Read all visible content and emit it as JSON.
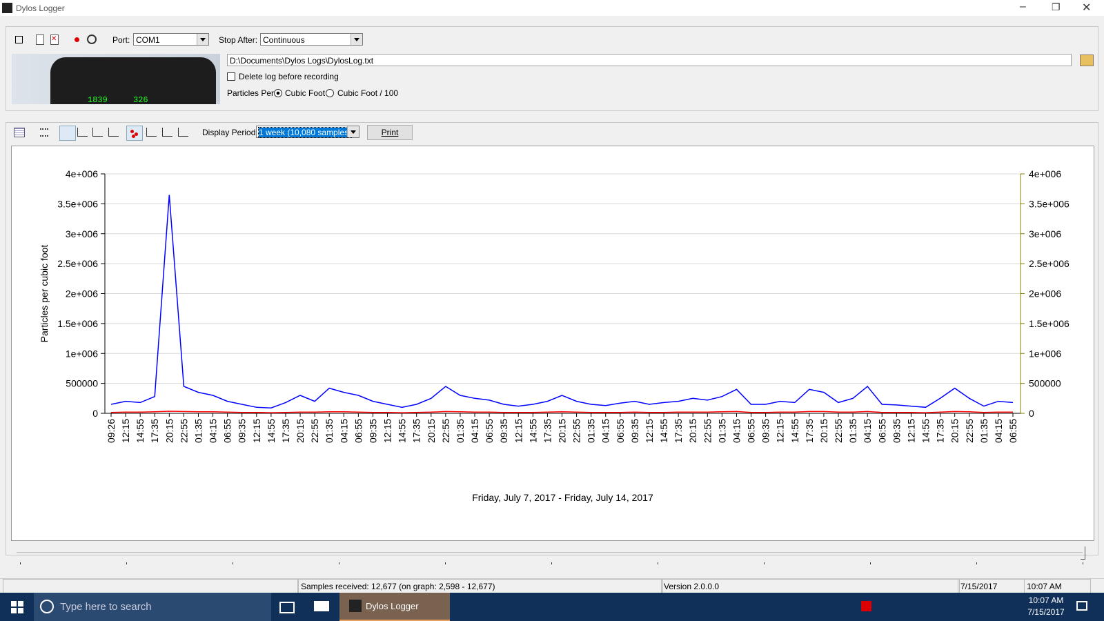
{
  "window": {
    "title": "Dylos Logger"
  },
  "toolbar": {
    "port_label": "Port:",
    "port": "COM1",
    "stop_after_label": "Stop After:",
    "stop_after": "Continuous"
  },
  "device": {
    "reading_1": "1839",
    "reading_2": "326"
  },
  "log": {
    "path": "D:\\Documents\\Dylos Logs\\DylosLog.txt",
    "delete_label": "Delete log before recording",
    "particles_per_label": "Particles Per:",
    "options": [
      "Cubic Foot",
      "Cubic Foot / 100"
    ]
  },
  "graph_toolbar": {
    "display_period_label": "Display Period:",
    "display_period": "1 week (10,080 samples)",
    "print": "Print"
  },
  "chart_data": {
    "type": "line",
    "x_label": "Friday, July 7, 2017 - Friday, July 14, 2017",
    "y_label": "Particles per cubic foot",
    "categories": [
      "09:26",
      "12:15",
      "14:55",
      "17:35",
      "20:15",
      "22:55",
      "01:35",
      "04:15",
      "06:55",
      "09:35",
      "12:15",
      "14:55",
      "17:35",
      "20:15",
      "22:55",
      "01:35",
      "04:15",
      "06:55",
      "09:35",
      "12:15",
      "14:55",
      "17:35",
      "20:15",
      "22:55",
      "01:35",
      "04:15",
      "06:55",
      "09:35",
      "12:15",
      "14:55",
      "17:35",
      "20:15",
      "22:55",
      "01:35",
      "04:15",
      "06:55",
      "09:35",
      "12:15",
      "14:55",
      "17:35",
      "20:15",
      "22:55",
      "01:35",
      "04:15",
      "06:55",
      "09:35",
      "12:15",
      "14:55",
      "17:35",
      "20:15",
      "22:55",
      "01:35",
      "04:15",
      "06:55",
      "09:35",
      "12:15",
      "14:55",
      "17:35",
      "20:15",
      "22:55",
      "01:35",
      "04:15",
      "06:55"
    ],
    "series": [
      {
        "color": "#0000ff",
        "values": [
          150000,
          200000,
          180000,
          280000,
          3650000,
          450000,
          350000,
          300000,
          200000,
          150000,
          100000,
          90000,
          180000,
          300000,
          200000,
          420000,
          350000,
          300000,
          200000,
          150000,
          100000,
          150000,
          250000,
          450000,
          300000,
          250000,
          220000,
          150000,
          120000,
          150000,
          200000,
          300000,
          200000,
          150000,
          130000,
          170000,
          200000,
          150000,
          180000,
          200000,
          250000,
          220000,
          280000,
          400000,
          150000,
          150000,
          200000,
          180000,
          400000,
          350000,
          180000,
          250000,
          450000,
          150000,
          140000,
          120000,
          100000,
          250000,
          420000,
          250000,
          120000,
          200000,
          180000
        ]
      },
      {
        "color": "#ff0000",
        "values": [
          15000,
          20000,
          20000,
          25000,
          35000,
          30000,
          25000,
          25000,
          20000,
          15000,
          15000,
          10000,
          15000,
          20000,
          20000,
          25000,
          25000,
          20000,
          15000,
          15000,
          10000,
          15000,
          20000,
          30000,
          25000,
          20000,
          20000,
          15000,
          15000,
          15000,
          20000,
          25000,
          20000,
          15000,
          15000,
          15000,
          20000,
          15000,
          15000,
          20000,
          20000,
          20000,
          25000,
          30000,
          15000,
          15000,
          20000,
          20000,
          30000,
          30000,
          20000,
          20000,
          30000,
          15000,
          15000,
          15000,
          10000,
          20000,
          30000,
          25000,
          15000,
          20000,
          20000
        ]
      }
    ],
    "ylim": [
      0,
      4000000
    ],
    "yticks": [
      0,
      500000,
      {
        "value": 1000000,
        "label": "1e+006"
      },
      {
        "value": 1500000,
        "label": "1.5e+006"
      },
      {
        "value": 2000000,
        "label": "2e+006"
      },
      {
        "value": 2500000,
        "label": "2.5e+006"
      },
      {
        "value": 3000000,
        "label": "3e+006"
      },
      {
        "value": 3500000,
        "label": "3.5e+006"
      },
      {
        "value": 4000000,
        "label": "4e+006"
      }
    ],
    "y2lim": [
      0,
      4000000
    ],
    "y2ticks": [
      0,
      500000,
      {
        "value": 1000000,
        "label": "1e+006"
      },
      {
        "value": 1500000,
        "label": "1.5e+006"
      },
      {
        "value": 2000000,
        "label": "2e+006"
      },
      {
        "value": 2500000,
        "label": "2.5e+006"
      },
      {
        "value": 3000000,
        "label": "3e+006"
      },
      {
        "value": 3500000,
        "label": "3.5e+006"
      },
      {
        "value": 4000000,
        "label": "4e+006"
      }
    ],
    "grid": true
  },
  "status_bar": {
    "samples": "Samples received: 12,677  (on graph: 2,598 - 12,677)",
    "version": "Version 2.0.0.0",
    "date": "7/15/2017",
    "time": "10:07 AM"
  },
  "taskbar": {
    "search": "Type here to search",
    "app": "Dylos Logger",
    "time": "10:07 AM",
    "date": "7/15/2017"
  }
}
